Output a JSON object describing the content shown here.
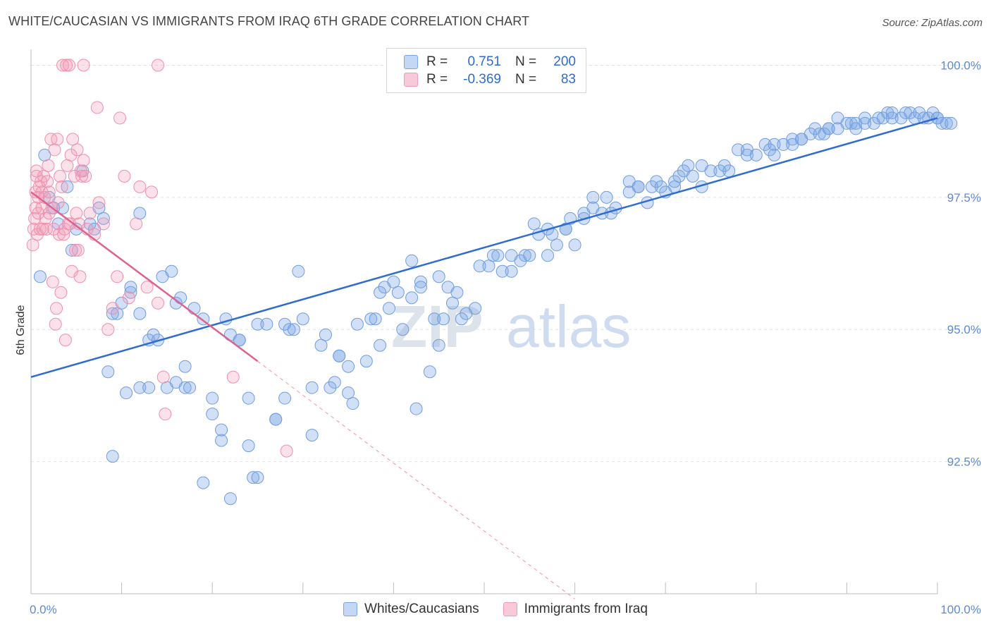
{
  "header": {
    "title": "WHITE/CAUCASIAN VS IMMIGRANTS FROM IRAQ 6TH GRADE CORRELATION CHART",
    "source": "Source: ZipAtlas.com"
  },
  "legend": {
    "rows": [
      {
        "r_label": "R =",
        "r_value": "0.751",
        "n_label": "N =",
        "n_value": "200",
        "color": "#7aa6e6"
      },
      {
        "r_label": "R =",
        "r_value": "-0.369",
        "n_label": "N =",
        "n_value": "83",
        "color": "#f29ab6"
      }
    ]
  },
  "bottom_legend": {
    "items": [
      {
        "label": "Whites/Caucasians",
        "color": "#7aa6e6"
      },
      {
        "label": "Immigrants from Iraq",
        "color": "#f29ab6"
      }
    ]
  },
  "watermark": {
    "zip": "ZIP",
    "atlas": "atlas"
  },
  "chart_data": {
    "type": "scatter",
    "xlabel": "",
    "ylabel": "6th Grade",
    "xlim": [
      0,
      100
    ],
    "ylim": [
      90.0,
      100.3
    ],
    "x_tick_labels": [
      {
        "value": 0,
        "label": "0.0%"
      },
      {
        "value": 100,
        "label": "100.0%"
      }
    ],
    "y_ticks": [
      {
        "value": 100.0,
        "label": "100.0%"
      },
      {
        "value": 97.5,
        "label": "97.5%"
      },
      {
        "value": 95.0,
        "label": "95.0%"
      },
      {
        "value": 92.5,
        "label": "92.5%"
      }
    ],
    "grid": true,
    "legend_position": "top-center",
    "series": [
      {
        "name": "Whites/Caucasians",
        "color": "#7aa6e6",
        "line_color": "#2e6cd1",
        "trend": {
          "x": [
            0,
            100
          ],
          "y": [
            94.1,
            99.0
          ]
        },
        "points": [
          [
            1,
            96.0
          ],
          [
            1.5,
            98.3
          ],
          [
            2,
            97.5
          ],
          [
            2.5,
            97.3
          ],
          [
            3,
            97.0
          ],
          [
            3.5,
            97.3
          ],
          [
            4,
            97.7
          ],
          [
            4.5,
            96.5
          ],
          [
            5,
            96.9
          ],
          [
            5.7,
            98.0
          ],
          [
            6.5,
            97.0
          ],
          [
            7,
            96.9
          ],
          [
            7.5,
            97.3
          ],
          [
            8,
            97.1
          ],
          [
            8.5,
            94.2
          ],
          [
            9,
            95.3
          ],
          [
            9,
            92.6
          ],
          [
            9.5,
            95.3
          ],
          [
            10,
            95.5
          ],
          [
            10.5,
            93.8
          ],
          [
            11,
            95.7
          ],
          [
            11,
            95.8
          ],
          [
            12,
            95.3
          ],
          [
            12,
            93.9
          ],
          [
            12,
            97.2
          ],
          [
            13,
            93.9
          ],
          [
            13,
            94.8
          ],
          [
            13.5,
            94.9
          ],
          [
            14,
            94.8
          ],
          [
            14.5,
            96.0
          ],
          [
            15,
            93.9
          ],
          [
            15.5,
            96.1
          ],
          [
            16,
            94.0
          ],
          [
            16,
            95.5
          ],
          [
            16.5,
            95.6
          ],
          [
            17,
            93.9
          ],
          [
            17,
            94.3
          ],
          [
            17.5,
            93.9
          ],
          [
            18,
            95.4
          ],
          [
            19,
            92.1
          ],
          [
            19,
            95.2
          ],
          [
            20,
            93.7
          ],
          [
            20,
            93.4
          ],
          [
            21,
            92.9
          ],
          [
            21,
            93.1
          ],
          [
            21.5,
            95.2
          ],
          [
            22,
            91.8
          ],
          [
            22,
            94.9
          ],
          [
            23,
            94.8
          ],
          [
            23,
            94.8
          ],
          [
            24,
            93.7
          ],
          [
            24,
            92.8
          ],
          [
            24.5,
            92.2
          ],
          [
            25,
            95.1
          ],
          [
            25,
            92.2
          ],
          [
            26,
            95.1
          ],
          [
            27,
            93.3
          ],
          [
            27,
            93.3
          ],
          [
            28,
            93.7
          ],
          [
            28,
            95.1
          ],
          [
            28.5,
            95.0
          ],
          [
            29,
            95.0
          ],
          [
            29.5,
            96.1
          ],
          [
            30,
            95.2
          ],
          [
            31,
            93.9
          ],
          [
            31,
            93.0
          ],
          [
            32,
            94.7
          ],
          [
            32.5,
            94.9
          ],
          [
            33,
            93.9
          ],
          [
            33.5,
            94.0
          ],
          [
            34,
            94.5
          ],
          [
            34,
            94.5
          ],
          [
            35,
            94.3
          ],
          [
            35,
            93.8
          ],
          [
            35.5,
            93.6
          ],
          [
            36,
            95.1
          ],
          [
            37,
            94.4
          ],
          [
            37.5,
            95.2
          ],
          [
            38,
            95.2
          ],
          [
            38.5,
            94.7
          ],
          [
            38.5,
            95.7
          ],
          [
            39,
            95.8
          ],
          [
            39.5,
            95.4
          ],
          [
            40,
            95.9
          ],
          [
            40.5,
            95.7
          ],
          [
            41,
            95.0
          ],
          [
            42,
            96.3
          ],
          [
            42,
            95.6
          ],
          [
            42.5,
            93.5
          ],
          [
            43,
            95.9
          ],
          [
            43,
            95.8
          ],
          [
            44,
            94.2
          ],
          [
            44.5,
            95.2
          ],
          [
            45,
            94.7
          ],
          [
            45,
            96.0
          ],
          [
            45.5,
            95.2
          ],
          [
            46,
            95.8
          ],
          [
            46.5,
            95.5
          ],
          [
            47,
            95.7
          ],
          [
            47.5,
            95.2
          ],
          [
            48,
            95.3
          ],
          [
            49,
            95.4
          ],
          [
            49.5,
            96.2
          ],
          [
            50.5,
            96.2
          ],
          [
            51,
            96.4
          ],
          [
            51.5,
            96.4
          ],
          [
            52,
            96.1
          ],
          [
            53,
            96.4
          ],
          [
            53,
            96.1
          ],
          [
            54,
            96.3
          ],
          [
            54.5,
            96.4
          ],
          [
            55,
            96.4
          ],
          [
            55.5,
            97.0
          ],
          [
            56,
            96.8
          ],
          [
            57,
            96.4
          ],
          [
            57,
            96.9
          ],
          [
            57.5,
            96.8
          ],
          [
            58,
            96.6
          ],
          [
            59,
            96.9
          ],
          [
            59,
            96.9
          ],
          [
            59.5,
            97.1
          ],
          [
            60,
            96.6
          ],
          [
            61,
            97.2
          ],
          [
            61,
            97.1
          ],
          [
            62,
            97.5
          ],
          [
            62,
            97.3
          ],
          [
            63,
            97.2
          ],
          [
            63.5,
            97.5
          ],
          [
            64,
            97.2
          ],
          [
            64.5,
            97.3
          ],
          [
            66,
            97.8
          ],
          [
            66,
            97.6
          ],
          [
            67,
            97.7
          ],
          [
            67,
            97.7
          ],
          [
            68,
            97.4
          ],
          [
            68.5,
            97.7
          ],
          [
            69,
            97.8
          ],
          [
            69.5,
            97.7
          ],
          [
            70,
            97.6
          ],
          [
            71,
            97.7
          ],
          [
            71,
            97.8
          ],
          [
            71.5,
            97.9
          ],
          [
            72,
            98.0
          ],
          [
            72.5,
            98.1
          ],
          [
            73,
            97.9
          ],
          [
            74,
            98.1
          ],
          [
            74,
            97.7
          ],
          [
            75,
            98.0
          ],
          [
            76,
            98.0
          ],
          [
            76.5,
            98.1
          ],
          [
            77,
            98.0
          ],
          [
            78,
            98.4
          ],
          [
            79,
            98.3
          ],
          [
            79,
            98.4
          ],
          [
            80,
            98.3
          ],
          [
            81,
            98.5
          ],
          [
            81.5,
            98.4
          ],
          [
            82,
            98.5
          ],
          [
            82,
            98.3
          ],
          [
            83,
            98.5
          ],
          [
            84,
            98.6
          ],
          [
            84,
            98.5
          ],
          [
            85,
            98.6
          ],
          [
            85,
            98.6
          ],
          [
            86,
            98.7
          ],
          [
            86.5,
            98.8
          ],
          [
            87,
            98.7
          ],
          [
            87.5,
            98.7
          ],
          [
            88,
            98.8
          ],
          [
            88,
            98.8
          ],
          [
            89,
            99.0
          ],
          [
            89,
            98.8
          ],
          [
            90,
            98.9
          ],
          [
            90.5,
            98.9
          ],
          [
            91,
            98.8
          ],
          [
            91,
            98.9
          ],
          [
            92,
            99.0
          ],
          [
            92,
            98.9
          ],
          [
            93,
            98.9
          ],
          [
            93.5,
            99.0
          ],
          [
            94,
            99.0
          ],
          [
            94.5,
            99.1
          ],
          [
            95,
            99.0
          ],
          [
            95,
            99.1
          ],
          [
            96,
            99.0
          ],
          [
            96.5,
            99.1
          ],
          [
            97,
            99.1
          ],
          [
            97.5,
            99.0
          ],
          [
            98,
            99.1
          ],
          [
            98.5,
            99.0
          ],
          [
            99,
            99.0
          ],
          [
            99.5,
            99.1
          ],
          [
            100,
            99.0
          ],
          [
            100,
            99.0
          ],
          [
            100.5,
            98.9
          ],
          [
            101,
            98.9
          ],
          [
            101.5,
            98.9
          ]
        ]
      },
      {
        "name": "Immigrants from Iraq",
        "color": "#f29ab6",
        "line_color": "#e0628c",
        "trend": {
          "x": [
            0,
            25
          ],
          "y": [
            97.6,
            94.4
          ]
        },
        "trend_extension": {
          "x": [
            25,
            60
          ],
          "y": [
            94.4,
            89.9
          ]
        },
        "points": [
          [
            0.2,
            96.6
          ],
          [
            0.3,
            96.9
          ],
          [
            0.4,
            97.1
          ],
          [
            0.5,
            97.3
          ],
          [
            0.5,
            97.6
          ],
          [
            0.6,
            98.0
          ],
          [
            0.6,
            97.9
          ],
          [
            0.7,
            96.8
          ],
          [
            0.8,
            97.2
          ],
          [
            0.8,
            97.5
          ],
          [
            0.9,
            97.7
          ],
          [
            1.0,
            96.9
          ],
          [
            1.1,
            97.8
          ],
          [
            1.2,
            97.3
          ],
          [
            1.2,
            97.6
          ],
          [
            1.3,
            96.9
          ],
          [
            1.4,
            97.9
          ],
          [
            1.5,
            97.5
          ],
          [
            1.6,
            97.1
          ],
          [
            1.7,
            96.9
          ],
          [
            1.8,
            97.8
          ],
          [
            1.9,
            98.1
          ],
          [
            2.0,
            97.6
          ],
          [
            2.0,
            97.2
          ],
          [
            2.2,
            98.6
          ],
          [
            2.3,
            97.3
          ],
          [
            2.4,
            95.9
          ],
          [
            2.5,
            96.9
          ],
          [
            2.6,
            98.4
          ],
          [
            2.7,
            95.1
          ],
          [
            2.8,
            95.4
          ],
          [
            2.9,
            98.6
          ],
          [
            3.0,
            97.4
          ],
          [
            3.1,
            96.8
          ],
          [
            3.2,
            97.9
          ],
          [
            3.3,
            95.7
          ],
          [
            3.4,
            97.7
          ],
          [
            3.5,
            100.0
          ],
          [
            3.6,
            96.8
          ],
          [
            3.7,
            96.9
          ],
          [
            3.8,
            94.8
          ],
          [
            3.9,
            100.0
          ],
          [
            4.0,
            98.1
          ],
          [
            4.1,
            97.0
          ],
          [
            4.2,
            100.0
          ],
          [
            4.3,
            97.0
          ],
          [
            4.4,
            98.3
          ],
          [
            4.5,
            96.1
          ],
          [
            4.6,
            98.6
          ],
          [
            4.8,
            97.9
          ],
          [
            4.9,
            96.5
          ],
          [
            5.0,
            97.2
          ],
          [
            5.1,
            98.4
          ],
          [
            5.2,
            96.5
          ],
          [
            5.3,
            97.0
          ],
          [
            5.4,
            96.0
          ],
          [
            5.5,
            98.0
          ],
          [
            5.6,
            97.9
          ],
          [
            5.8,
            100.0
          ],
          [
            5.8,
            98.2
          ],
          [
            6.0,
            97.9
          ],
          [
            6.2,
            96.9
          ],
          [
            6.5,
            97.2
          ],
          [
            7.0,
            96.8
          ],
          [
            7.3,
            99.2
          ],
          [
            7.5,
            97.4
          ],
          [
            8.0,
            97.0
          ],
          [
            8.5,
            95.0
          ],
          [
            9.0,
            95.4
          ],
          [
            9.5,
            96.0
          ],
          [
            9.8,
            99.0
          ],
          [
            10.3,
            97.9
          ],
          [
            10.8,
            95.6
          ],
          [
            11.6,
            97.0
          ],
          [
            12.0,
            97.7
          ],
          [
            12.8,
            95.8
          ],
          [
            13.3,
            97.6
          ],
          [
            14.0,
            95.5
          ],
          [
            14.6,
            94.1
          ],
          [
            14.8,
            93.4
          ],
          [
            22.3,
            94.1
          ],
          [
            28.2,
            92.7
          ],
          [
            14.0,
            100.0
          ]
        ]
      }
    ]
  }
}
